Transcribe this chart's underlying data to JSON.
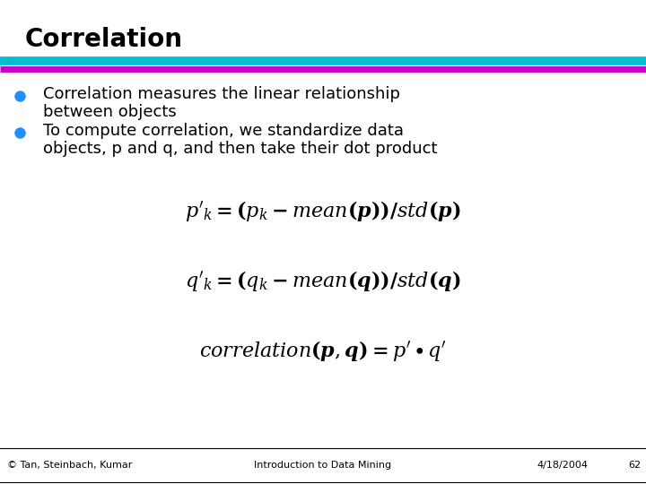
{
  "title": "Correlation",
  "title_color": "#000000",
  "title_fontsize": 20,
  "bar1_color": "#00BCD4",
  "bar2_color": "#CC00CC",
  "bullet_color": "#1E90FF",
  "bullet1_line1": "Correlation measures the linear relationship",
  "bullet1_line2": "between objects",
  "bullet2_line1": "To compute correlation, we standardize data",
  "bullet2_line2": "objects, p and q, and then take their dot product",
  "formula1": "$\\boldsymbol{p'_k = (p_k - \\mathit{mean}(p)) / \\mathit{std}(p)}$",
  "formula2": "$\\boldsymbol{q'_k = (q_k - \\mathit{mean}(q)) / \\mathit{std}(q)}$",
  "formula3": "$\\boldsymbol{\\mathit{correlation}(p,q) = p' \\bullet q'}$",
  "footer_left": "© Tan, Steinbach, Kumar",
  "footer_center": "Introduction to Data Mining",
  "footer_right": "4/18/2004",
  "footer_page": "62",
  "bg_color": "#FFFFFF",
  "text_color": "#000000",
  "formula_color": "#000000",
  "footer_border_color": "#000000",
  "text_fontsize": 13,
  "formula_fontsize": 16,
  "footer_fontsize": 8
}
